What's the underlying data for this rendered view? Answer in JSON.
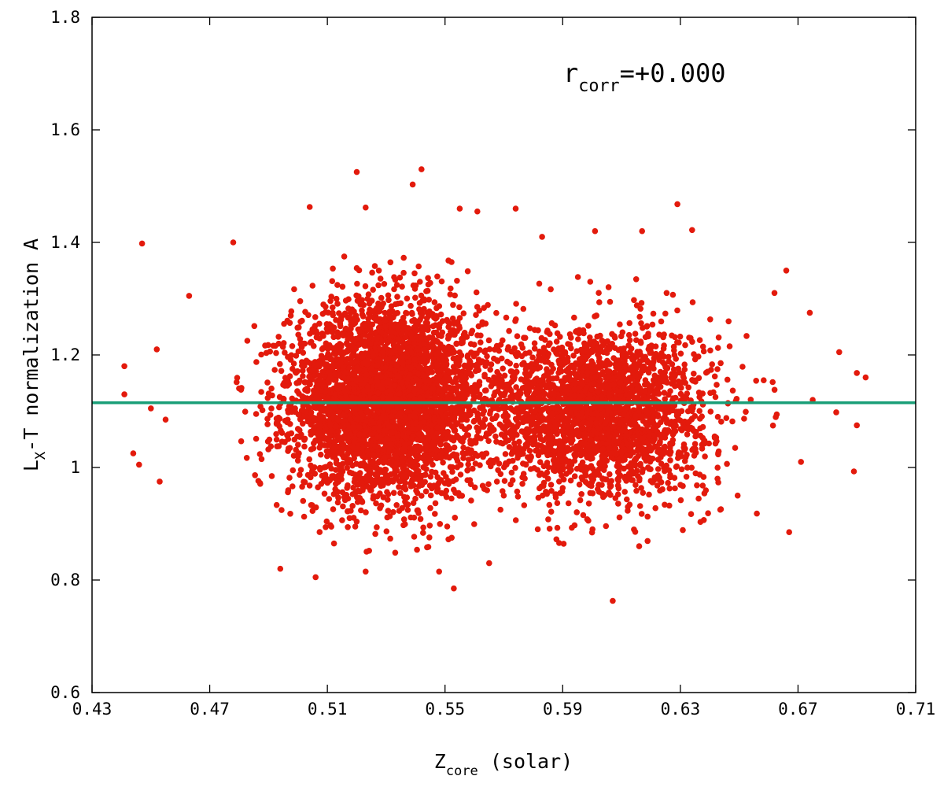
{
  "chart_data": {
    "type": "scatter",
    "title": "",
    "xlabel": {
      "main": "Z",
      "sub": "core",
      "rest": " (solar)"
    },
    "ylabel": {
      "main": "L",
      "sub": "X",
      "rest": "-T normalization A"
    },
    "xlim": [
      0.43,
      0.71
    ],
    "ylim": [
      0.6,
      1.8
    ],
    "x_ticks": [
      0.43,
      0.47,
      0.51,
      0.55,
      0.59,
      0.63,
      0.67,
      0.71
    ],
    "x_tick_labels": [
      "0.43",
      "0.47",
      "0.51",
      "0.55",
      "0.59",
      "0.63",
      "0.67",
      "0.71"
    ],
    "y_ticks": [
      0.6,
      0.8,
      1.0,
      1.2,
      1.4,
      1.6,
      1.8
    ],
    "y_tick_labels": [
      "0.6",
      "0.8",
      "1",
      "1.2",
      "1.4",
      "1.6",
      "1.8"
    ],
    "grid": false,
    "annotation": {
      "main": "r",
      "sub": "corr",
      "rest": "=+0.000"
    },
    "fit_line": {
      "y": 1.115,
      "color": "#1a9e77"
    },
    "point_color": "#e31a0c",
    "clusters": [
      {
        "x_mean": 0.53,
        "x_std": 0.016,
        "y_mean": 1.12,
        "y_std": 0.085,
        "weight": 0.62
      },
      {
        "x_mean": 0.602,
        "x_std": 0.019,
        "y_mean": 1.1,
        "y_std": 0.075,
        "weight": 0.38
      }
    ],
    "outliers": [
      {
        "x": 0.441,
        "y": 1.18
      },
      {
        "x": 0.441,
        "y": 1.13
      },
      {
        "x": 0.444,
        "y": 1.025
      },
      {
        "x": 0.447,
        "y": 1.398
      },
      {
        "x": 0.446,
        "y": 1.005
      },
      {
        "x": 0.453,
        "y": 0.975
      },
      {
        "x": 0.452,
        "y": 1.21
      },
      {
        "x": 0.463,
        "y": 1.305
      },
      {
        "x": 0.52,
        "y": 1.525
      },
      {
        "x": 0.542,
        "y": 1.53
      },
      {
        "x": 0.539,
        "y": 1.503
      },
      {
        "x": 0.504,
        "y": 1.463
      },
      {
        "x": 0.629,
        "y": 1.468
      },
      {
        "x": 0.553,
        "y": 0.785
      },
      {
        "x": 0.607,
        "y": 0.763
      },
      {
        "x": 0.494,
        "y": 0.82
      },
      {
        "x": 0.506,
        "y": 0.805
      },
      {
        "x": 0.689,
        "y": 0.993
      },
      {
        "x": 0.69,
        "y": 1.075
      },
      {
        "x": 0.693,
        "y": 1.16
      },
      {
        "x": 0.69,
        "y": 1.168
      },
      {
        "x": 0.684,
        "y": 1.205
      },
      {
        "x": 0.674,
        "y": 1.275
      },
      {
        "x": 0.666,
        "y": 1.35
      },
      {
        "x": 0.667,
        "y": 0.885
      },
      {
        "x": 0.656,
        "y": 0.918
      },
      {
        "x": 0.671,
        "y": 1.01
      },
      {
        "x": 0.683,
        "y": 1.098
      },
      {
        "x": 0.675,
        "y": 1.12
      },
      {
        "x": 0.662,
        "y": 1.31
      },
      {
        "x": 0.634,
        "y": 1.422
      },
      {
        "x": 0.617,
        "y": 1.42
      },
      {
        "x": 0.601,
        "y": 1.42
      },
      {
        "x": 0.574,
        "y": 1.46
      },
      {
        "x": 0.561,
        "y": 1.455
      },
      {
        "x": 0.555,
        "y": 1.46
      },
      {
        "x": 0.583,
        "y": 1.41
      },
      {
        "x": 0.523,
        "y": 1.462
      },
      {
        "x": 0.478,
        "y": 1.4
      },
      {
        "x": 0.45,
        "y": 1.105
      },
      {
        "x": 0.455,
        "y": 1.085
      },
      {
        "x": 0.548,
        "y": 0.815
      },
      {
        "x": 0.565,
        "y": 0.83
      },
      {
        "x": 0.523,
        "y": 0.815
      },
      {
        "x": 0.616,
        "y": 0.86
      }
    ]
  }
}
